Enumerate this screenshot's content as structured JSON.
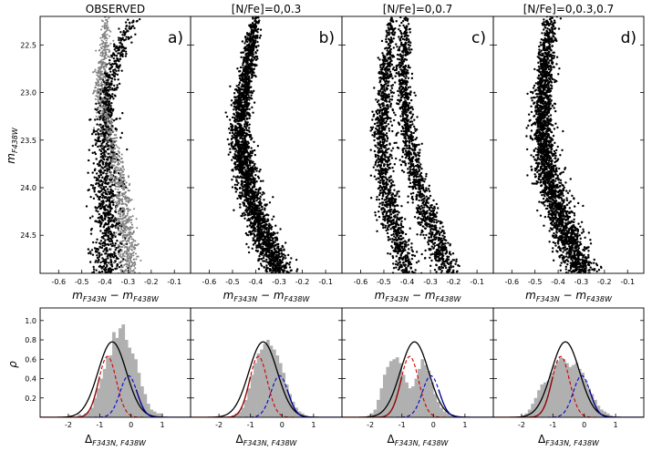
{
  "chart_data": [
    {
      "type": "scatter",
      "panel": "a)",
      "title": "OBSERVED",
      "xlabel_main": "m",
      "xlabel_sub1": "F343N",
      "xlabel_mid": " − m",
      "xlabel_sub2": "F438W",
      "ylabel_main": "m",
      "ylabel_sub": "F438W",
      "xlim": [
        -0.68,
        -0.03
      ],
      "ylim": [
        24.9,
        22.2
      ],
      "xticks": [
        "-0.6",
        "-0.5",
        "-0.4",
        "-0.3",
        "-0.2",
        "-0.1"
      ],
      "xtick_values": [
        -0.6,
        -0.5,
        -0.4,
        -0.3,
        -0.2,
        -0.1
      ],
      "yticks": [
        "22.5",
        "23.0",
        "23.5",
        "24.0",
        "24.5"
      ],
      "ytick_values": [
        22.5,
        23.0,
        23.5,
        24.0,
        24.5
      ],
      "sequences": [
        {
          "color": "#000000",
          "width": 0.045,
          "ridge": [
            [
              22.2,
              -0.27
            ],
            [
              22.5,
              -0.33
            ],
            [
              23.0,
              -0.39
            ],
            [
              23.5,
              -0.4
            ],
            [
              24.0,
              -0.4
            ],
            [
              24.5,
              -0.39
            ],
            [
              24.9,
              -0.38
            ]
          ]
        },
        {
          "color": "#808080",
          "width": 0.03,
          "ridge": [
            [
              22.4,
              -0.4
            ],
            [
              23.0,
              -0.42
            ],
            [
              24.0,
              -0.33
            ],
            [
              24.7,
              -0.3
            ]
          ]
        }
      ],
      "n_points": 2200
    },
    {
      "type": "scatter",
      "panel": "b)",
      "title": "[N/Fe]=0,0.3",
      "xlabel_main": "m",
      "xlabel_sub1": "F343N",
      "xlabel_mid": " − m",
      "xlabel_sub2": "F438W",
      "xlim": [
        -0.68,
        -0.03
      ],
      "ylim": [
        24.9,
        22.2
      ],
      "xticks": [
        "-0.6",
        "-0.5",
        "-0.4",
        "-0.3",
        "-0.2",
        "-0.1"
      ],
      "xtick_values": [
        -0.6,
        -0.5,
        -0.4,
        -0.3,
        -0.2,
        -0.1
      ],
      "sequences": [
        {
          "color": "#000000",
          "width": 0.04,
          "ridge": [
            [
              22.2,
              -0.4
            ],
            [
              22.8,
              -0.44
            ],
            [
              23.3,
              -0.47
            ],
            [
              23.8,
              -0.45
            ],
            [
              24.3,
              -0.4
            ],
            [
              24.9,
              -0.3
            ]
          ]
        }
      ],
      "n_points": 2400
    },
    {
      "type": "scatter",
      "panel": "c)",
      "title": "[N/Fe]=0,0.7",
      "xlabel_main": "m",
      "xlabel_sub1": "F343N",
      "xlabel_mid": " − m",
      "xlabel_sub2": "F438W",
      "xlim": [
        -0.68,
        -0.03
      ],
      "ylim": [
        24.9,
        22.2
      ],
      "xticks": [
        "-0.6",
        "-0.5",
        "-0.4",
        "-0.3",
        "-0.2",
        "-0.1"
      ],
      "xtick_values": [
        -0.6,
        -0.5,
        -0.4,
        -0.3,
        -0.2,
        -0.1
      ],
      "sequences": [
        {
          "color": "#000000",
          "width": 0.035,
          "ridge": [
            [
              22.2,
              -0.46
            ],
            [
              22.8,
              -0.49
            ],
            [
              23.4,
              -0.51
            ],
            [
              23.9,
              -0.5
            ],
            [
              24.4,
              -0.46
            ],
            [
              24.9,
              -0.4
            ]
          ]
        },
        {
          "color": "#000000",
          "width": 0.035,
          "ridge": [
            [
              22.2,
              -0.41
            ],
            [
              22.8,
              -0.42
            ],
            [
              23.4,
              -0.4
            ],
            [
              23.9,
              -0.36
            ],
            [
              24.4,
              -0.3
            ],
            [
              24.9,
              -0.22
            ]
          ]
        }
      ],
      "n_points": 2400
    },
    {
      "type": "scatter",
      "panel": "d)",
      "title": "[N/Fe]=0,0.3,0.7",
      "xlabel_main": "m",
      "xlabel_sub1": "F343N",
      "xlabel_mid": " − m",
      "xlabel_sub2": "F438W",
      "xlim": [
        -0.68,
        -0.03
      ],
      "ylim": [
        24.9,
        22.2
      ],
      "xticks": [
        "-0.6",
        "-0.5",
        "-0.4",
        "-0.3",
        "-0.2",
        "-0.1"
      ],
      "xtick_values": [
        -0.6,
        -0.5,
        -0.4,
        -0.3,
        -0.2,
        -0.1
      ],
      "sequences": [
        {
          "color": "#000000",
          "width": 0.045,
          "ridge": [
            [
              22.2,
              -0.43
            ],
            [
              22.8,
              -0.46
            ],
            [
              23.4,
              -0.47
            ],
            [
              23.9,
              -0.44
            ],
            [
              24.4,
              -0.38
            ],
            [
              24.9,
              -0.3
            ]
          ]
        }
      ],
      "n_points": 2400
    },
    {
      "type": "bar",
      "panel": "a)",
      "subtype": "histogram_with_gaussians",
      "xlabel_main": "Δ",
      "xlabel_sub": "F343N, F438W",
      "ylabel": "ρ",
      "xlim": [
        -2.9,
        1.9
      ],
      "ylim": [
        0,
        1.13
      ],
      "xticks": [
        "-2",
        "-1",
        "0",
        "1"
      ],
      "xtick_values": [
        -2,
        -1,
        0,
        1
      ],
      "yticks": [
        "0.2",
        "0.4",
        "0.6",
        "0.8",
        "1.0"
      ],
      "ytick_values": [
        0.2,
        0.4,
        0.6,
        0.8,
        1.0
      ],
      "bin_start": -2.0,
      "bin_width": 0.1,
      "hist": [
        0.02,
        0,
        0,
        0.03,
        0,
        0.04,
        0.06,
        0.1,
        0.2,
        0.3,
        0.4,
        0.5,
        0.62,
        0.64,
        0.88,
        0.82,
        0.92,
        0.96,
        0.8,
        0.72,
        0.66,
        0.6,
        0.46,
        0.32,
        0.24,
        0.14,
        0.08,
        0.06,
        0.04,
        0.04
      ],
      "gaussians": [
        {
          "color": "#000000",
          "dash": false,
          "amp": 0.78,
          "mu": -0.6,
          "sigma": 0.45
        },
        {
          "color": "#d00000",
          "dash": true,
          "amp": 0.63,
          "mu": -0.75,
          "sigma": 0.28
        },
        {
          "color": "#0000cc",
          "dash": true,
          "amp": 0.43,
          "mu": -0.08,
          "sigma": 0.27
        },
        {
          "color": "#8b0000",
          "dash": false,
          "amp": 0.63,
          "mu": -0.75,
          "sigma": 0.28,
          "side": "left"
        },
        {
          "color": "#00008b",
          "dash": false,
          "amp": 0.43,
          "mu": -0.08,
          "sigma": 0.27,
          "side": "right"
        }
      ]
    },
    {
      "type": "bar",
      "panel": "b)",
      "subtype": "histogram_with_gaussians",
      "xlabel_main": "Δ",
      "xlabel_sub": "F343N, F438W",
      "xlim": [
        -2.9,
        1.9
      ],
      "ylim": [
        0,
        1.13
      ],
      "xticks": [
        "-2",
        "-1",
        "0",
        "1"
      ],
      "xtick_values": [
        -2,
        -1,
        0,
        1
      ],
      "bin_start": -1.6,
      "bin_width": 0.1,
      "hist": [
        0.02,
        0.04,
        0.06,
        0.1,
        0.18,
        0.3,
        0.44,
        0.56,
        0.66,
        0.7,
        0.76,
        0.8,
        0.74,
        0.7,
        0.64,
        0.56,
        0.46,
        0.34,
        0.24,
        0.16,
        0.1,
        0.06,
        0.04,
        0.02
      ],
      "gaussians": [
        {
          "color": "#000000",
          "dash": false,
          "amp": 0.78,
          "mu": -0.6,
          "sigma": 0.45
        },
        {
          "color": "#d00000",
          "dash": true,
          "amp": 0.63,
          "mu": -0.75,
          "sigma": 0.28
        },
        {
          "color": "#0000cc",
          "dash": true,
          "amp": 0.43,
          "mu": -0.08,
          "sigma": 0.27
        },
        {
          "color": "#8b0000",
          "dash": false,
          "amp": 0.63,
          "mu": -0.75,
          "sigma": 0.28,
          "side": "left"
        },
        {
          "color": "#00008b",
          "dash": false,
          "amp": 0.43,
          "mu": -0.08,
          "sigma": 0.27,
          "side": "right"
        }
      ]
    },
    {
      "type": "bar",
      "panel": "c)",
      "subtype": "histogram_with_gaussians",
      "xlabel_main": "Δ",
      "xlabel_sub": "F343N, F438W",
      "xlim": [
        -2.9,
        1.9
      ],
      "ylim": [
        0,
        1.13
      ],
      "xticks": [
        "-2",
        "-1",
        "0",
        "1"
      ],
      "xtick_values": [
        -2,
        -1,
        0,
        1
      ],
      "bin_start": -2.1,
      "bin_width": 0.1,
      "hist": [
        0.02,
        0.04,
        0.08,
        0.18,
        0.3,
        0.44,
        0.52,
        0.58,
        0.6,
        0.62,
        0.56,
        0.44,
        0.36,
        0.3,
        0.32,
        0.4,
        0.5,
        0.6,
        0.54,
        0.48,
        0.36,
        0.24,
        0.16,
        0.1,
        0.06,
        0.04,
        0.02
      ],
      "gaussians": [
        {
          "color": "#000000",
          "dash": false,
          "amp": 0.78,
          "mu": -0.6,
          "sigma": 0.45
        },
        {
          "color": "#d00000",
          "dash": true,
          "amp": 0.63,
          "mu": -0.75,
          "sigma": 0.28
        },
        {
          "color": "#0000cc",
          "dash": true,
          "amp": 0.43,
          "mu": -0.08,
          "sigma": 0.27
        },
        {
          "color": "#8b0000",
          "dash": false,
          "amp": 0.63,
          "mu": -0.75,
          "sigma": 0.28,
          "side": "left"
        },
        {
          "color": "#00008b",
          "dash": false,
          "amp": 0.43,
          "mu": -0.08,
          "sigma": 0.27,
          "side": "right"
        }
      ]
    },
    {
      "type": "bar",
      "panel": "d)",
      "subtype": "histogram_with_gaussians",
      "xlabel_main": "Δ",
      "xlabel_sub": "F343N, F438W",
      "xlim": [
        -2.9,
        1.9
      ],
      "ylim": [
        0,
        1.13
      ],
      "xticks": [
        "-2",
        "-1",
        "0",
        "1"
      ],
      "xtick_values": [
        -2,
        -1,
        0,
        1
      ],
      "bin_start": -2.0,
      "bin_width": 0.1,
      "hist": [
        0.02,
        0.04,
        0.08,
        0.14,
        0.2,
        0.28,
        0.34,
        0.36,
        0.38,
        0.46,
        0.54,
        0.58,
        0.62,
        0.6,
        0.56,
        0.52,
        0.54,
        0.56,
        0.5,
        0.46,
        0.38,
        0.3,
        0.24,
        0.18,
        0.12,
        0.08,
        0.06,
        0.04,
        0.02
      ],
      "gaussians": [
        {
          "color": "#000000",
          "dash": false,
          "amp": 0.78,
          "mu": -0.6,
          "sigma": 0.45
        },
        {
          "color": "#d00000",
          "dash": true,
          "amp": 0.63,
          "mu": -0.75,
          "sigma": 0.28
        },
        {
          "color": "#0000cc",
          "dash": true,
          "amp": 0.43,
          "mu": -0.08,
          "sigma": 0.27
        },
        {
          "color": "#8b0000",
          "dash": false,
          "amp": 0.63,
          "mu": -0.75,
          "sigma": 0.28,
          "side": "left"
        },
        {
          "color": "#00008b",
          "dash": false,
          "amp": 0.43,
          "mu": -0.08,
          "sigma": 0.27,
          "side": "right"
        }
      ]
    }
  ]
}
